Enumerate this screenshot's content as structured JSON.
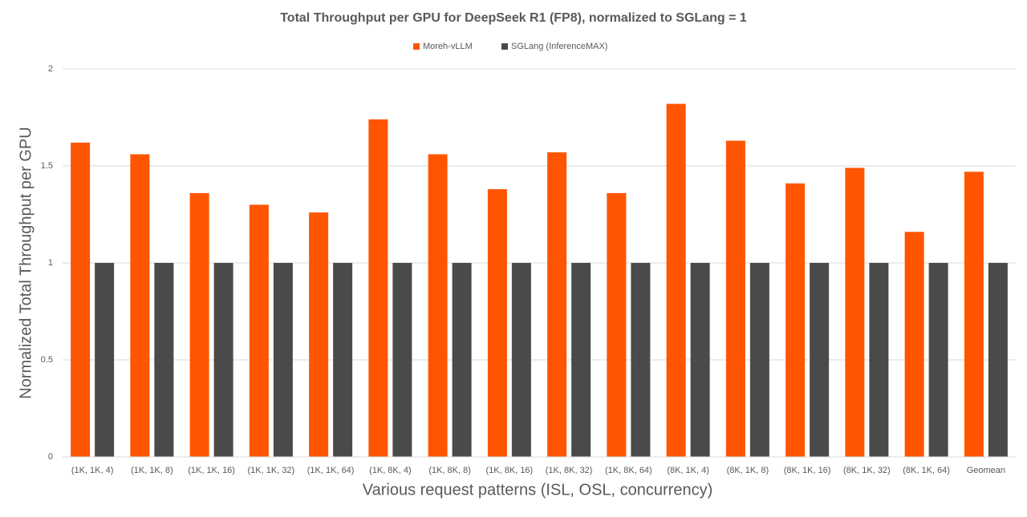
{
  "chart_data": {
    "type": "bar",
    "title": "Total Throughput per GPU for DeepSeek R1 (FP8), normalized to SGLang = 1",
    "x_label": "Various request patterns (ISL, OSL, concurrency)",
    "y_label": "Normalized Total Throughput per GPU",
    "categories": [
      "(1K, 1K, 4)",
      "(1K, 1K, 8)",
      "(1K, 1K, 16)",
      "(1K, 1K, 32)",
      "(1K, 1K, 64)",
      "(1K, 8K, 4)",
      "(1K, 8K, 8)",
      "(1K, 8K, 16)",
      "(1K, 8K, 32)",
      "(1K, 8K, 64)",
      "(8K, 1K, 4)",
      "(8K, 1K, 8)",
      "(8K, 1K, 16)",
      "(8K, 1K, 32)",
      "(8K, 1K, 64)",
      "Geomean"
    ],
    "series": [
      {
        "name": "Moreh-vLLM",
        "color": "#ff5500",
        "values": [
          1.62,
          1.56,
          1.36,
          1.3,
          1.26,
          1.74,
          1.56,
          1.38,
          1.57,
          1.36,
          1.82,
          1.63,
          1.41,
          1.49,
          1.16,
          1.47
        ]
      },
      {
        "name": "SGLang (InferenceMAX)",
        "color": "#4a4a4a",
        "values": [
          1,
          1,
          1,
          1,
          1,
          1,
          1,
          1,
          1,
          1,
          1,
          1,
          1,
          1,
          1,
          1
        ]
      }
    ],
    "ylim": [
      0,
      2
    ],
    "yticks": [
      0,
      0.5,
      1,
      1.5,
      2
    ],
    "grid": true,
    "legend": "top"
  }
}
